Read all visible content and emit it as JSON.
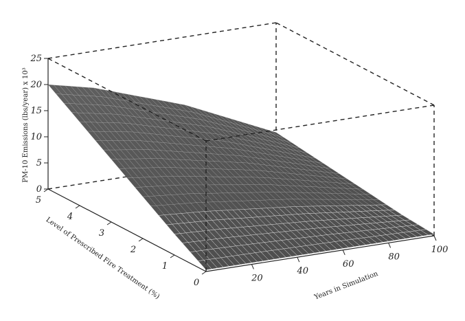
{
  "chart_data": {
    "type": "surface",
    "xlabel": "Years in Simulation",
    "ylabel": "Level of Prescribed Fire Treatment (%)",
    "zlabel": "PM-10 Emissions (lbs/year) x 10³",
    "x_ticks": [
      "20",
      "40",
      "60",
      "80",
      "100"
    ],
    "y_ticks": [
      "0",
      "1",
      "2",
      "3",
      "4",
      "5"
    ],
    "z_ticks": [
      "0",
      "5",
      "10",
      "15",
      "20",
      "25"
    ],
    "xlim": [
      0,
      100
    ],
    "ylim": [
      0,
      5
    ],
    "zlim": [
      0,
      25
    ],
    "x": [
      0,
      20,
      40,
      60,
      80,
      100
    ],
    "y": [
      0,
      1,
      2,
      3,
      4,
      5
    ],
    "z": [
      [
        0.3,
        0.3,
        0.3,
        0.3,
        0.3,
        0.3
      ],
      [
        4.0,
        3.6,
        3.0,
        2.4,
        1.6,
        0.8
      ],
      [
        8.0,
        7.2,
        6.0,
        4.8,
        3.2,
        1.6
      ],
      [
        12.0,
        10.8,
        9.0,
        7.2,
        4.8,
        2.4
      ],
      [
        16.0,
        14.4,
        12.0,
        9.6,
        6.4,
        3.2
      ],
      [
        20.0,
        18.0,
        15.0,
        12.0,
        8.0,
        4.0
      ]
    ],
    "grid": false
  }
}
